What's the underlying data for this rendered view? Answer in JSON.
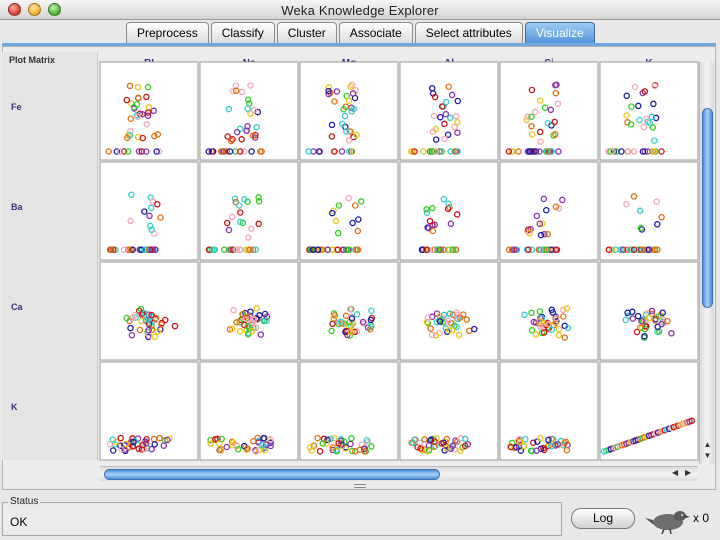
{
  "window": {
    "title": "Weka Knowledge Explorer"
  },
  "tabs": [
    {
      "label": "Preprocess",
      "active": false
    },
    {
      "label": "Classify",
      "active": false
    },
    {
      "label": "Cluster",
      "active": false
    },
    {
      "label": "Associate",
      "active": false
    },
    {
      "label": "Select attributes",
      "active": false
    },
    {
      "label": "Visualize",
      "active": true
    }
  ],
  "plot_matrix": {
    "corner_label": "Plot Matrix",
    "column_attributes": [
      "RI",
      "Na",
      "Mg",
      "Al",
      "Si",
      "K"
    ],
    "row_attributes": [
      "Fe",
      "Ba",
      "Ca",
      "K"
    ],
    "class_colors": [
      "#1a1aa8",
      "#cc1111",
      "#ecc417",
      "#33cc22",
      "#f0a8b8",
      "#8833aa",
      "#33cccc",
      "#e07010"
    ]
  },
  "chart_data": {
    "type": "scatter",
    "title": "",
    "xlabel": "",
    "ylabel": "",
    "columns": [
      "RI",
      "Na",
      "Mg",
      "Al",
      "Si",
      "K"
    ],
    "rows": [
      "Fe",
      "Ba",
      "Ca",
      "K"
    ],
    "points_per_cell": 40,
    "class_colors": [
      "#1a1aa8",
      "#cc1111",
      "#ecc417",
      "#33cc22",
      "#f0a8b8",
      "#8833aa",
      "#33cccc",
      "#e07010"
    ]
  },
  "status": {
    "label": "Status",
    "text": "OK"
  },
  "log_button": {
    "label": "Log"
  },
  "task_count": "x 0"
}
